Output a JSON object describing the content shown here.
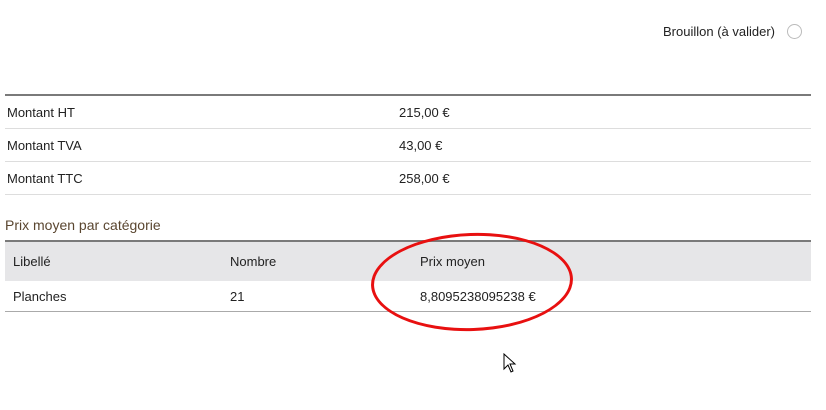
{
  "status": {
    "label": "Brouillon (à valider)",
    "selected": false
  },
  "totals": [
    {
      "label": "Montant HT",
      "value": "215,00 €"
    },
    {
      "label": "Montant TVA",
      "value": "43,00 €"
    },
    {
      "label": "Montant TTC",
      "value": "258,00 €"
    }
  ],
  "category_section": {
    "title": "Prix moyen par catégorie",
    "headers": [
      "Libellé",
      "Nombre",
      "Prix moyen"
    ],
    "rows": [
      [
        "Planches",
        "21",
        "8,8095238095238 €"
      ]
    ]
  },
  "annotation_color": "#e81010"
}
